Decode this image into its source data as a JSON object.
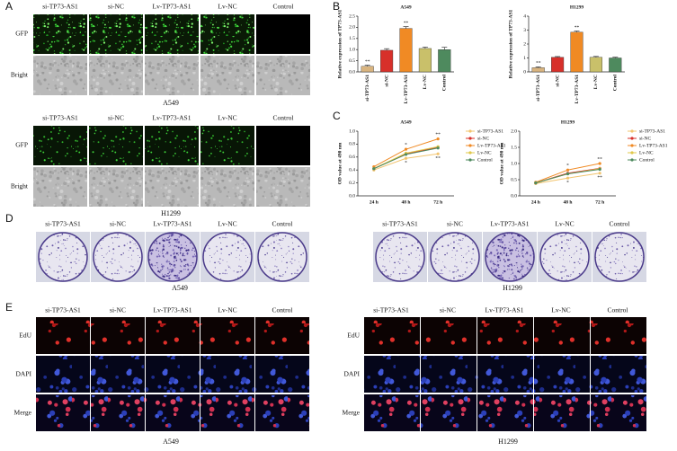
{
  "panel_letters": [
    "A",
    "B",
    "C",
    "D",
    "E"
  ],
  "gfp_panel": {
    "columns": [
      "si-TP73-AS1",
      "si-NC",
      "Lv-TP73-AS1",
      "Lv-NC",
      "Control"
    ],
    "rows": [
      "GFP",
      "Bright"
    ],
    "captions": [
      "A549",
      "H1299"
    ]
  },
  "colony_panel": {
    "columns": [
      "si-TP73-AS1",
      "si-NC",
      "Lv-TP73-AS1",
      "Lv-NC",
      "Control"
    ],
    "captions": [
      "A549",
      "H1299"
    ]
  },
  "edu_panel": {
    "columns": [
      "si-TP73-AS1",
      "si-NC",
      "Lv-TP73-AS1",
      "Lv-NC",
      "Control"
    ],
    "rows": [
      "EdU",
      "DAPI",
      "Merge"
    ],
    "captions": [
      "A549",
      "H1299"
    ]
  },
  "chart_data": [
    {
      "type": "bar",
      "title": "A549",
      "y_label": "Relative expression of TP73-AS1",
      "categories": [
        "si-TP73-AS1",
        "si-NC",
        "Lv-TP73-AS1",
        "Lv-NC",
        "Control"
      ],
      "values": [
        0.25,
        0.97,
        1.95,
        1.05,
        1.0
      ],
      "errors": [
        0.05,
        0.07,
        0.08,
        0.06,
        0.1
      ],
      "colors": [
        "#d9b47f",
        "#d7302a",
        "#f08a24",
        "#c9c06a",
        "#4e8a5e"
      ],
      "annotations": [
        "**",
        null,
        "**",
        null,
        null
      ],
      "ylim": [
        0,
        2.5
      ],
      "yticks": [
        {
          "value": 0,
          "label": "0.0"
        },
        0.5,
        {
          "value": 1,
          "label": "1.0"
        },
        1.5,
        {
          "value": 2,
          "label": "2.0"
        },
        2.5
      ]
    },
    {
      "type": "bar",
      "title": "H1299",
      "y_label": "Relative expression of TP73-AS1",
      "categories": [
        "si-TP73-AS1",
        "si-NC",
        "Lv-TP73-AS1",
        "Lv-NC",
        "Control"
      ],
      "values": [
        0.3,
        1.05,
        2.85,
        1.05,
        1.0
      ],
      "errors": [
        0.06,
        0.05,
        0.08,
        0.06,
        0.05
      ],
      "colors": [
        "#d9b47f",
        "#d7302a",
        "#f08a24",
        "#c9c06a",
        "#4e8a5e"
      ],
      "annotations": [
        "**",
        null,
        "**",
        null,
        null
      ],
      "ylim": [
        0,
        4
      ],
      "yticks": [
        0,
        1,
        2,
        3,
        4
      ]
    },
    {
      "type": "line",
      "title": "A549",
      "y_label": "OD value at 490 nm",
      "categories": [
        "24 h",
        "48 h",
        "72 h"
      ],
      "ylim": [
        0,
        1.0
      ],
      "yticks": [
        {
          "value": 0,
          "label": "0.0"
        },
        0.2,
        0.4,
        0.6,
        0.8,
        {
          "value": 1,
          "label": "1.0"
        }
      ],
      "series": [
        {
          "name": "si-TP73-AS1",
          "color": "#f2c46e",
          "values": [
            0.4,
            0.58,
            0.65
          ],
          "annotations": [
            null,
            "*",
            "**"
          ]
        },
        {
          "name": "si-NC",
          "color": "#d7302a",
          "values": [
            0.42,
            0.65,
            0.75
          ],
          "annotations": [
            null,
            null,
            null
          ]
        },
        {
          "name": "Lv-TP73-AS1",
          "color": "#f08a24",
          "values": [
            0.45,
            0.72,
            0.88
          ],
          "annotations": [
            null,
            "*",
            "**"
          ]
        },
        {
          "name": "Lv-NC",
          "color": "#e0c84a",
          "values": [
            0.42,
            0.66,
            0.76
          ],
          "annotations": [
            null,
            null,
            null
          ]
        },
        {
          "name": "Control",
          "color": "#4e8a5e",
          "values": [
            0.42,
            0.64,
            0.74
          ],
          "annotations": [
            null,
            null,
            null
          ]
        }
      ]
    },
    {
      "type": "line",
      "title": "H1299",
      "y_label": "OD value at 490 nm",
      "categories": [
        "24 h",
        "48 h",
        "72 h"
      ],
      "ylim": [
        0,
        2.0
      ],
      "yticks": [
        {
          "value": 0,
          "label": "0.0"
        },
        0.5,
        {
          "value": 1,
          "label": "1.0"
        },
        1.5,
        {
          "value": 2,
          "label": "2.0"
        }
      ],
      "series": [
        {
          "name": "si-TP73-AS1",
          "color": "#f2c46e",
          "values": [
            0.38,
            0.55,
            0.7
          ],
          "annotations": [
            null,
            "*",
            "**"
          ]
        },
        {
          "name": "si-NC",
          "color": "#d7302a",
          "values": [
            0.4,
            0.7,
            0.85
          ],
          "annotations": [
            null,
            null,
            null
          ]
        },
        {
          "name": "Lv-TP73-AS1",
          "color": "#f08a24",
          "values": [
            0.42,
            0.8,
            1.0
          ],
          "annotations": [
            null,
            "*",
            "**"
          ]
        },
        {
          "name": "Lv-NC",
          "color": "#e0c84a",
          "values": [
            0.4,
            0.68,
            0.84
          ],
          "annotations": [
            null,
            null,
            null
          ]
        },
        {
          "name": "Control",
          "color": "#4e8a5e",
          "values": [
            0.4,
            0.68,
            0.82
          ],
          "annotations": [
            null,
            null,
            null
          ]
        }
      ]
    }
  ]
}
